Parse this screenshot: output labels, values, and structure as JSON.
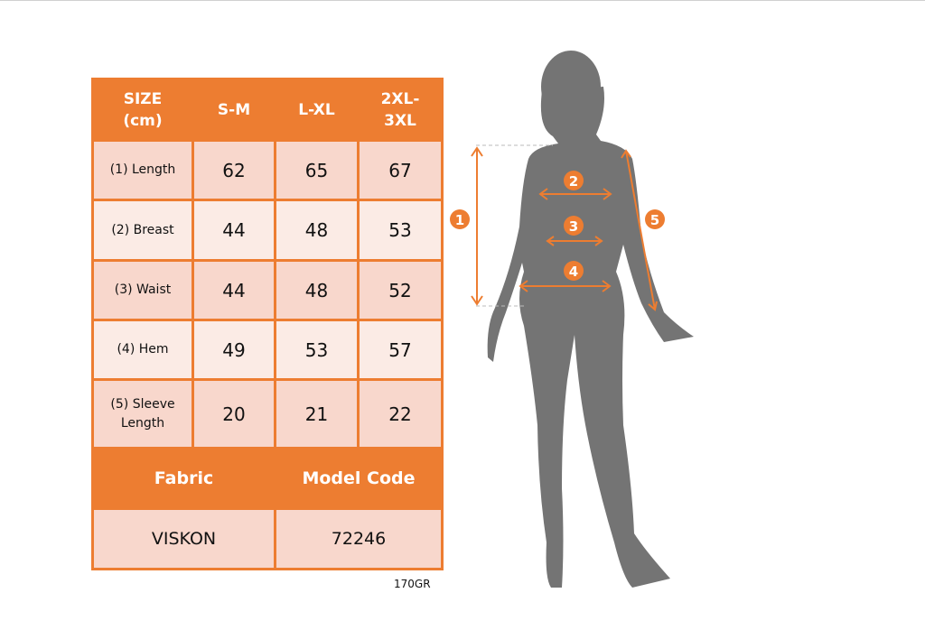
{
  "table": {
    "header": [
      "SIZE (cm)",
      "S-M",
      "L-XL",
      "2XL-3XL"
    ],
    "header_lines": [
      [
        "SIZE",
        "(cm)"
      ],
      [
        "S-M"
      ],
      [
        "L-XL"
      ],
      [
        "2XL-",
        "3XL"
      ]
    ],
    "rows": [
      {
        "label": "(1) Length",
        "values": [
          "62",
          "65",
          "67"
        ]
      },
      {
        "label": "(2) Breast",
        "values": [
          "44",
          "48",
          "53"
        ]
      },
      {
        "label": "(3) Waist",
        "values": [
          "44",
          "48",
          "52"
        ]
      },
      {
        "label": "(4) Hem",
        "values": [
          "49",
          "53",
          "57"
        ]
      },
      {
        "label_lines": [
          "(5) Sleeve",
          "Length"
        ],
        "values": [
          "20",
          "21",
          "22"
        ]
      }
    ],
    "fabric_label": "Fabric",
    "model_code_label": "Model Code",
    "fabric_value": "VISKON",
    "model_code_value": "72246"
  },
  "weight": "170GR",
  "figure": {
    "markers": [
      "1",
      "2",
      "3",
      "4",
      "5"
    ]
  },
  "colors": {
    "accent": "#ed7d31",
    "row_dark": "#f8d7cc",
    "row_light": "#fbebe5",
    "silhouette": "#747474"
  }
}
